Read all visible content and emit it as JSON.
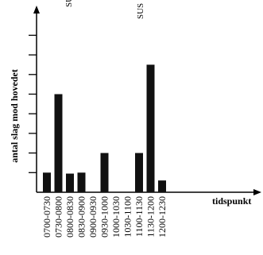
{
  "chart_data": {
    "type": "bar",
    "categories": [
      "0700-0730",
      "0730-0800",
      "0800-0830",
      "0830-0900",
      "0900-0930",
      "0930-1000",
      "1000-1030",
      "1030-1100",
      "1100-1130",
      "1130-1200",
      "1200-1230"
    ],
    "values": [
      1,
      5,
      0.95,
      1,
      0,
      2,
      0,
      0,
      2,
      6.5,
      0.6
    ],
    "tick_labels": [
      "0700-0730",
      "0730-0800",
      "0800-0830",
      "0830-0900",
      "0900-0930",
      "0930-1000",
      "1000-1030",
      "1030-1100",
      "1100-1130",
      "1130-1200",
      "1200-1230"
    ],
    "xlabel": "tidspunkt",
    "ylabel": "antal slag mod hovedet",
    "annotations": [
      "SU",
      "SUS"
    ],
    "ylim": [
      0,
      8.5
    ],
    "grid": false,
    "bar_color": "#111111",
    "axis_color": "#000000"
  }
}
